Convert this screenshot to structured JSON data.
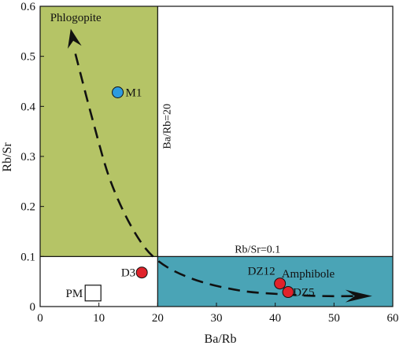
{
  "chart_data": {
    "type": "scatter",
    "xlabel": "Ba/Rb",
    "ylabel": "Rb/Sr",
    "xlim": [
      0,
      60
    ],
    "ylim": [
      0,
      0.6
    ],
    "xticks": [
      0,
      10,
      20,
      30,
      40,
      50,
      60
    ],
    "yticks": [
      0,
      0.1,
      0.2,
      0.3,
      0.4,
      0.5,
      0.6
    ],
    "xtick_labels": [
      "0",
      "10",
      "20",
      "30",
      "40",
      "50",
      "60"
    ],
    "ytick_labels": [
      "0",
      "0.1",
      "0.2",
      "0.3",
      "0.4",
      "0.5",
      "0.6"
    ],
    "grid": false,
    "colors": {
      "phlogopite": "#b5c466",
      "amphibole": "#4aa4b6",
      "red_point": "#e0232b",
      "blue_point": "#2d9be0"
    },
    "regions": [
      {
        "label": "Phlogopite",
        "x0": 0,
        "x1": 20,
        "y0": 0.1,
        "y1": 0.6,
        "color": "#b5c466"
      },
      {
        "label": "Amphibole",
        "x0": 20,
        "x1": 60,
        "y0": 0,
        "y1": 0.1,
        "color": "#4aa4b6"
      }
    ],
    "reference_lines": [
      {
        "label": "Ba/Rb=20",
        "orientation": "vertical",
        "value": 20
      },
      {
        "label": "Rb/Sr=0.1",
        "orientation": "horizontal",
        "value": 0.1
      }
    ],
    "points": [
      {
        "label": "M1",
        "x": 13.2,
        "y": 0.428,
        "color": "#2d9be0",
        "marker": "circle"
      },
      {
        "label": "D3",
        "x": 17.3,
        "y": 0.068,
        "color": "#e0232b",
        "marker": "circle"
      },
      {
        "label": "DZ12",
        "x": 40.8,
        "y": 0.046,
        "color": "#e0232b",
        "marker": "circle"
      },
      {
        "label": "DZ5",
        "x": 42.2,
        "y": 0.029,
        "color": "#e0232b",
        "marker": "circle"
      },
      {
        "label": "PM",
        "x": 9.0,
        "y": 0.027,
        "color": "#ffffff",
        "marker": "square"
      }
    ],
    "trend_path": [
      [
        6,
        0.505
      ],
      [
        9,
        0.37
      ],
      [
        12,
        0.25
      ],
      [
        16,
        0.15
      ],
      [
        20,
        0.092
      ],
      [
        26,
        0.055
      ],
      [
        34,
        0.032
      ],
      [
        42,
        0.024
      ],
      [
        48,
        0.021
      ],
      [
        55,
        0.021
      ]
    ],
    "arrowheads": [
      {
        "tip": [
          5.2,
          0.555
        ],
        "from": [
          6.2,
          0.5
        ]
      },
      {
        "tip": [
          56.5,
          0.021
        ],
        "from": [
          50.5,
          0.021
        ]
      }
    ]
  }
}
